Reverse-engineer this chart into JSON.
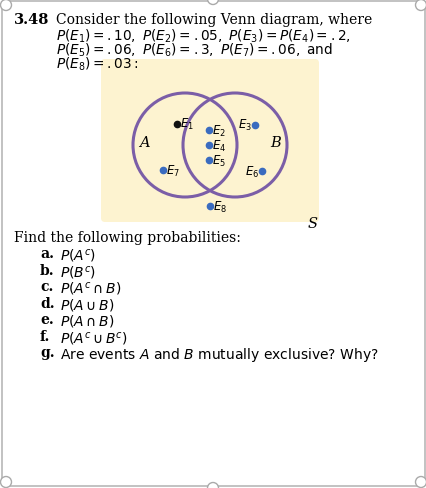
{
  "title_num": "3.48",
  "title_text": "Consider the following Venn diagram, where",
  "venn_bg": "#fdf3d0",
  "circle_color": "#7b5ea7",
  "dot_color_black": "#111111",
  "dot_color_blue": "#3a6bbf",
  "label_A": "A",
  "label_B": "B",
  "label_S": "S",
  "find_text": "Find the following probabilities:",
  "bold_labels": [
    "a.",
    "b.",
    "c.",
    "d.",
    "e.",
    "f.",
    "g."
  ],
  "math_parts": [
    "$P(A^c)$",
    "$P(B^c)$",
    "$P(A^c \\cap B)$",
    "$P(A \\cup B)$",
    "$P(A \\cap B)$",
    "$P(A^c \\cup B^c)$",
    "Are events $A$ and $B$ mutually exclusive? Why?"
  ]
}
